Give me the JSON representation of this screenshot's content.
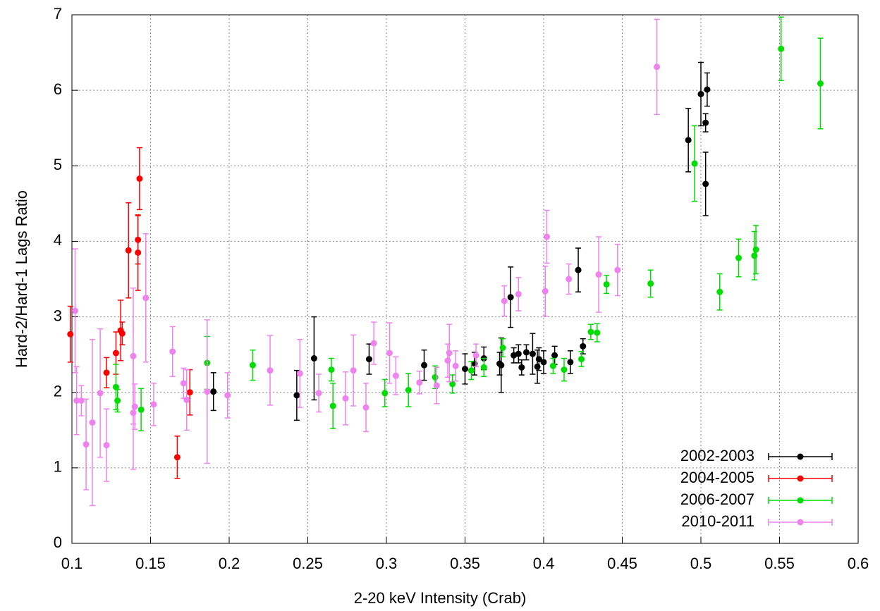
{
  "chart_data": {
    "type": "scatter",
    "xlabel": "2-20 keV Intensity (Crab)",
    "ylabel": "Hard-2/Hard-1 Lags Ratio",
    "xlim": [
      0.1,
      0.6
    ],
    "ylim": [
      0,
      7
    ],
    "xticks": [
      0.1,
      0.15,
      0.2,
      0.25,
      0.3,
      0.35,
      0.4,
      0.45,
      0.5,
      0.55,
      0.6
    ],
    "yticks": [
      0,
      1,
      2,
      3,
      4,
      5,
      6,
      7
    ],
    "grid": true,
    "legend": "bottom right",
    "series": [
      {
        "name": "2002-2003",
        "color": "#000000",
        "x": [
          0.19,
          0.243,
          0.254,
          0.289,
          0.324,
          0.35,
          0.356,
          0.362,
          0.372,
          0.373,
          0.379,
          0.381,
          0.384,
          0.386,
          0.389,
          0.393,
          0.396,
          0.397,
          0.4,
          0.407,
          0.417,
          0.422,
          0.425,
          0.492,
          0.5,
          0.503,
          0.503,
          0.504
        ],
        "values": [
          2.01,
          1.96,
          2.45,
          2.44,
          2.36,
          2.31,
          2.38,
          2.45,
          2.38,
          2.36,
          3.26,
          2.49,
          2.51,
          2.33,
          2.53,
          2.51,
          2.34,
          2.44,
          2.4,
          2.49,
          2.4,
          3.62,
          2.61,
          5.34,
          5.95,
          4.76,
          5.57,
          6.01
        ],
        "errors": [
          0.25,
          0.33,
          0.55,
          0.2,
          0.2,
          0.2,
          0.15,
          0.15,
          0.15,
          0.36,
          0.4,
          0.1,
          0.12,
          0.1,
          0.1,
          0.27,
          0.22,
          0.15,
          0.15,
          0.12,
          0.15,
          0.29,
          0.1,
          0.42,
          0.42,
          0.42,
          0.12,
          0.22
        ]
      },
      {
        "name": "2004-2005",
        "color": "#ff0000",
        "x": [
          0.099,
          0.122,
          0.128,
          0.131,
          0.132,
          0.136,
          0.142,
          0.142,
          0.143,
          0.167,
          0.175
        ],
        "values": [
          2.77,
          2.26,
          2.52,
          2.82,
          2.78,
          3.88,
          4.02,
          3.85,
          4.83,
          1.14,
          2.0
        ],
        "errors": [
          0.37,
          0.2,
          0.28,
          0.4,
          0.15,
          0.63,
          0.32,
          0.5,
          0.41,
          0.28,
          0.3
        ]
      },
      {
        "name": "2006-2007",
        "color": "#00dd00",
        "x": [
          0.128,
          0.129,
          0.144,
          0.186,
          0.215,
          0.265,
          0.266,
          0.299,
          0.314,
          0.331,
          0.342,
          0.354,
          0.362,
          0.374,
          0.406,
          0.413,
          0.424,
          0.43,
          0.434,
          0.44,
          0.468,
          0.496,
          0.512,
          0.524,
          0.534,
          0.535,
          0.551,
          0.576
        ],
        "values": [
          2.07,
          1.89,
          1.77,
          2.39,
          2.36,
          2.3,
          1.82,
          1.99,
          2.03,
          2.2,
          2.11,
          2.29,
          2.33,
          2.59,
          2.35,
          2.3,
          2.44,
          2.8,
          2.79,
          3.43,
          3.44,
          5.03,
          3.33,
          3.78,
          3.81,
          3.89,
          6.55,
          6.09
        ],
        "errors": [
          0.3,
          0.15,
          0.28,
          0.35,
          0.2,
          0.15,
          0.3,
          0.18,
          0.22,
          0.15,
          0.12,
          0.12,
          0.12,
          0.12,
          0.1,
          0.15,
          0.1,
          0.1,
          0.12,
          0.12,
          0.18,
          0.5,
          0.24,
          0.25,
          0.32,
          0.32,
          0.42,
          0.6
        ]
      },
      {
        "name": "2010-2011",
        "color": "#ee82ee",
        "x": [
          0.102,
          0.103,
          0.106,
          0.109,
          0.113,
          0.118,
          0.122,
          0.139,
          0.139,
          0.14,
          0.147,
          0.152,
          0.164,
          0.171,
          0.173,
          0.186,
          0.199,
          0.226,
          0.245,
          0.257,
          0.274,
          0.279,
          0.287,
          0.292,
          0.302,
          0.306,
          0.321,
          0.332,
          0.339,
          0.34,
          0.344,
          0.357,
          0.375,
          0.384,
          0.401,
          0.402,
          0.416,
          0.435,
          0.447,
          0.472
        ],
        "values": [
          3.08,
          1.89,
          1.89,
          1.31,
          1.6,
          1.99,
          1.3,
          2.48,
          1.73,
          1.81,
          3.25,
          1.84,
          2.54,
          2.12,
          1.9,
          2.01,
          1.96,
          2.29,
          2.25,
          1.99,
          1.92,
          2.29,
          1.8,
          2.65,
          2.52,
          2.22,
          2.13,
          2.09,
          2.42,
          2.52,
          2.35,
          2.49,
          3.21,
          3.3,
          3.34,
          4.06,
          3.5,
          3.56,
          3.62,
          6.31
        ],
        "errors": [
          0.82,
          0.45,
          0.2,
          0.6,
          1.1,
          0.85,
          0.48,
          0.9,
          0.75,
          0.3,
          0.85,
          0.28,
          0.33,
          0.2,
          0.4,
          0.95,
          0.3,
          0.46,
          0.45,
          0.25,
          0.35,
          0.47,
          0.32,
          0.28,
          0.4,
          0.25,
          0.15,
          0.24,
          0.22,
          0.38,
          0.2,
          0.15,
          0.2,
          0.22,
          0.33,
          0.35,
          0.2,
          0.5,
          0.34,
          0.63
        ]
      }
    ]
  }
}
